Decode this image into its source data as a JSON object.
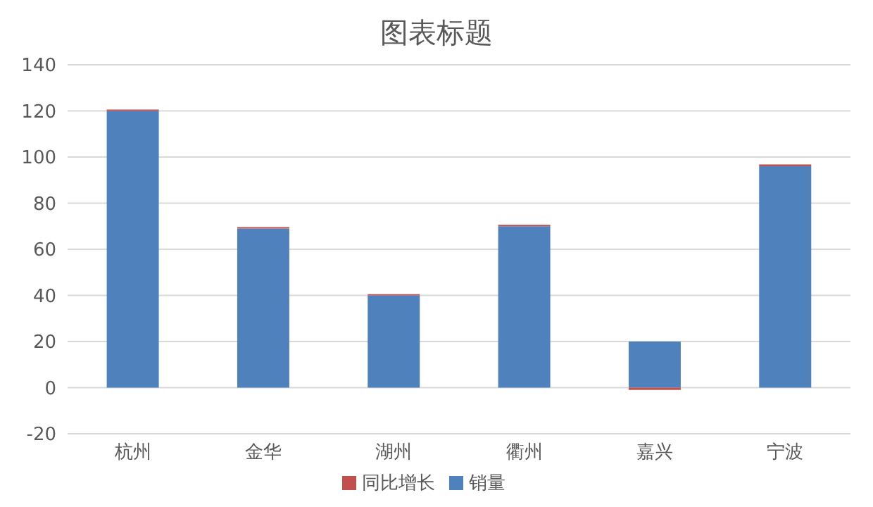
{
  "chart_data": {
    "type": "bar",
    "title": "图表标题",
    "categories": [
      "杭州",
      "金华",
      "湖州",
      "衢州",
      "嘉兴",
      "宁波"
    ],
    "stacked": true,
    "series": [
      {
        "name": "销量",
        "color": "#4f81bd",
        "values": [
          120,
          69,
          40,
          70,
          20,
          96
        ]
      },
      {
        "name": "同比增长",
        "color": "#c0504d",
        "values": [
          0.6,
          0.6,
          0.5,
          0.6,
          -1,
          0.8
        ]
      }
    ],
    "ylim": [
      -20,
      140
    ],
    "yticks": [
      -20,
      0,
      20,
      40,
      60,
      80,
      100,
      120,
      140
    ],
    "grid": "y",
    "legend": "bottom"
  }
}
